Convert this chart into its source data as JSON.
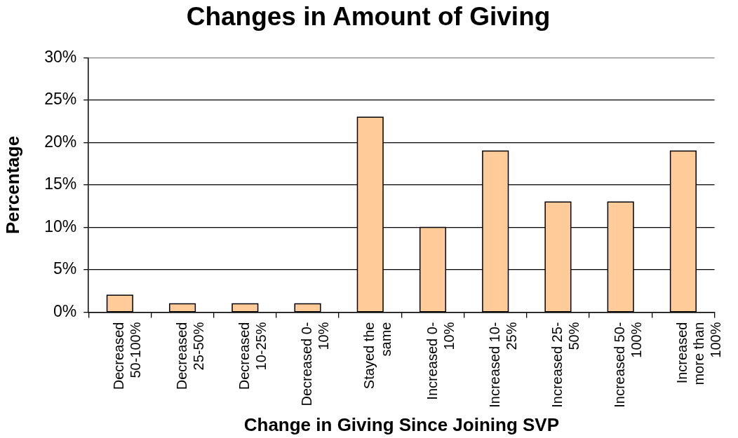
{
  "chart_data": {
    "type": "bar",
    "title": "Changes in Amount of Giving",
    "xlabel": "Change in Giving Since Joining SVP",
    "ylabel": "Percentage",
    "categories": [
      "Decreased 50-100%",
      "Decreased 25-50%",
      "Decreased 10-25%",
      "Decreased 0-10%",
      "Stayed the same",
      "Increased 0-10%",
      "Increased 10-25%",
      "Increased 25-50%",
      "Increased 50-100%",
      "Increased more than 100%"
    ],
    "values": [
      2,
      1,
      1,
      1,
      23,
      10,
      19,
      13,
      13,
      19
    ],
    "color": "#ffcc99",
    "ylim": [
      0,
      30
    ],
    "yticks": [
      {
        "value": 0,
        "label": "0%"
      },
      {
        "value": 5,
        "label": "5%"
      },
      {
        "value": 10,
        "label": "10%"
      },
      {
        "value": 15,
        "label": "15%"
      },
      {
        "value": 20,
        "label": "20%"
      },
      {
        "value": 25,
        "label": "25%"
      },
      {
        "value": 30,
        "label": "30%"
      }
    ],
    "grid": "y"
  }
}
